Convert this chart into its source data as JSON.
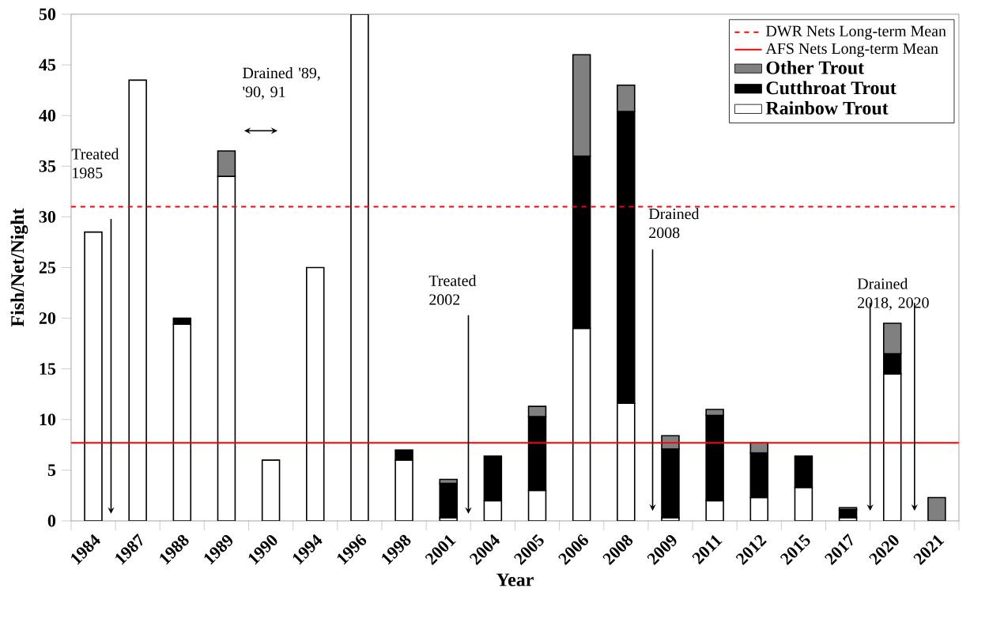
{
  "chart_data": {
    "type": "bar",
    "stacked": true,
    "xlabel": "Year",
    "ylabel": "Fish/Net/Night",
    "categories": [
      "1984",
      "1987",
      "1988",
      "1989",
      "1990",
      "1994",
      "1996",
      "1998",
      "2001",
      "2004",
      "2005",
      "2006",
      "2008",
      "2009",
      "2011",
      "2012",
      "2015",
      "2017",
      "2020",
      "2021"
    ],
    "series": [
      {
        "name": "Rainbow Trout",
        "color": "#ffffff",
        "values": [
          28.5,
          43.5,
          19.4,
          34,
          6,
          25,
          50,
          6,
          0.3,
          2,
          3,
          19,
          11.6,
          0.3,
          2,
          2.3,
          3.3,
          0.3,
          14.5,
          0
        ]
      },
      {
        "name": "Cutthroat Trout",
        "color": "#000000",
        "values": [
          0,
          0,
          0.6,
          0,
          0,
          0,
          0,
          1,
          3.4,
          4.4,
          7.3,
          17,
          28.8,
          6.8,
          8.4,
          4.4,
          3.1,
          0.8,
          2,
          0
        ]
      },
      {
        "name": "Other Trout",
        "color": "#808080",
        "values": [
          0,
          0,
          0,
          2.5,
          0,
          0,
          0,
          0,
          0.4,
          0,
          1,
          10,
          2.6,
          1.3,
          0.6,
          1,
          0,
          0.2,
          3,
          2.3
        ]
      }
    ],
    "ylim": [
      0,
      50
    ],
    "yticks": [
      0,
      5,
      10,
      15,
      20,
      25,
      30,
      35,
      40,
      45,
      50
    ],
    "ref_lines": [
      {
        "axis": "y",
        "value": 31,
        "label": "DWR Nets Long-term Mean",
        "color": "#ff0000",
        "line_style": "dashed"
      },
      {
        "axis": "y",
        "value": 7.7,
        "label": "AFS Nets Long-term Mean",
        "color": "#ff0000",
        "line_style": "solid"
      }
    ],
    "annotations": [
      "Treated 1985",
      "Drained '89, '90, 91",
      "Treated 2002",
      "Drained 2008",
      "Drained 2018, 2020"
    ],
    "legend": "top right",
    "grid": false
  }
}
